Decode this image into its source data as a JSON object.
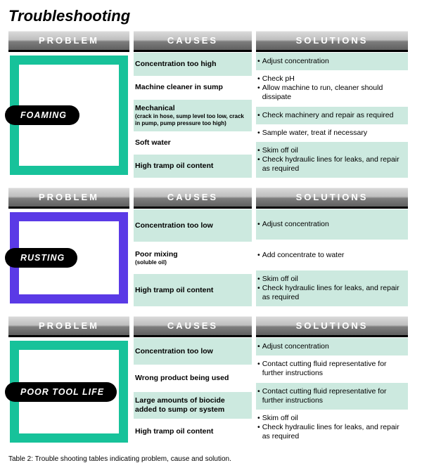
{
  "title": "Troubleshooting",
  "headers": {
    "problem": "PROBLEM",
    "causes": "CAUSES",
    "solutions": "SOLUTIONS"
  },
  "caption": "Table 2: Trouble shooting tables indicating problem, cause and solution.",
  "sections": [
    {
      "label": "FOAMING",
      "frame_color": "#17c29a",
      "rows": [
        {
          "cause": "Concentration too high",
          "solutions": [
            "Adjust concentration"
          ]
        },
        {
          "cause": "Machine cleaner in sump",
          "solutions": [
            "Check pH",
            "Allow machine to run, cleaner should dissipate"
          ]
        },
        {
          "cause": "Mechanical",
          "cause_sub": "(crack in hose, sump level too low, crack in pump, pump pressure too high)",
          "solutions": [
            "Check machinery and repair as required"
          ]
        },
        {
          "cause": "Soft water",
          "solutions": [
            "Sample water, treat if necessary"
          ]
        },
        {
          "cause": "High tramp oil content",
          "solutions": [
            "Skim off oil",
            "Check hydraulic lines for leaks, and repair as required"
          ]
        }
      ]
    },
    {
      "label": "RUSTING",
      "frame_color": "#5a3ae6",
      "rows": [
        {
          "cause": "Concentration too low",
          "solutions": [
            "Adjust concentration"
          ]
        },
        {
          "cause": "Poor mixing",
          "cause_sub": "(soluble oil)",
          "solutions": [
            "Add concentrate to water"
          ]
        },
        {
          "cause": "High tramp oil content",
          "solutions": [
            "Skim off oil",
            "Check hydraulic lines for leaks, and repair as required"
          ]
        }
      ]
    },
    {
      "label": "POOR TOOL LIFE",
      "frame_color": "#17c29a",
      "rows": [
        {
          "cause": "Concentration too low",
          "solutions": [
            "Adjust concentration"
          ]
        },
        {
          "cause": "Wrong product being used",
          "solutions": [
            "Contact cutting fluid representative for further instructions"
          ]
        },
        {
          "cause": "Large amounts of biocide added to sump or system",
          "solutions": [
            "Contact cutting fluid representative for further instructions"
          ]
        },
        {
          "cause": "High tramp oil content",
          "solutions": [
            "Skim off oil",
            "Check hydraulic lines for leaks, and repair as required"
          ]
        }
      ]
    }
  ]
}
